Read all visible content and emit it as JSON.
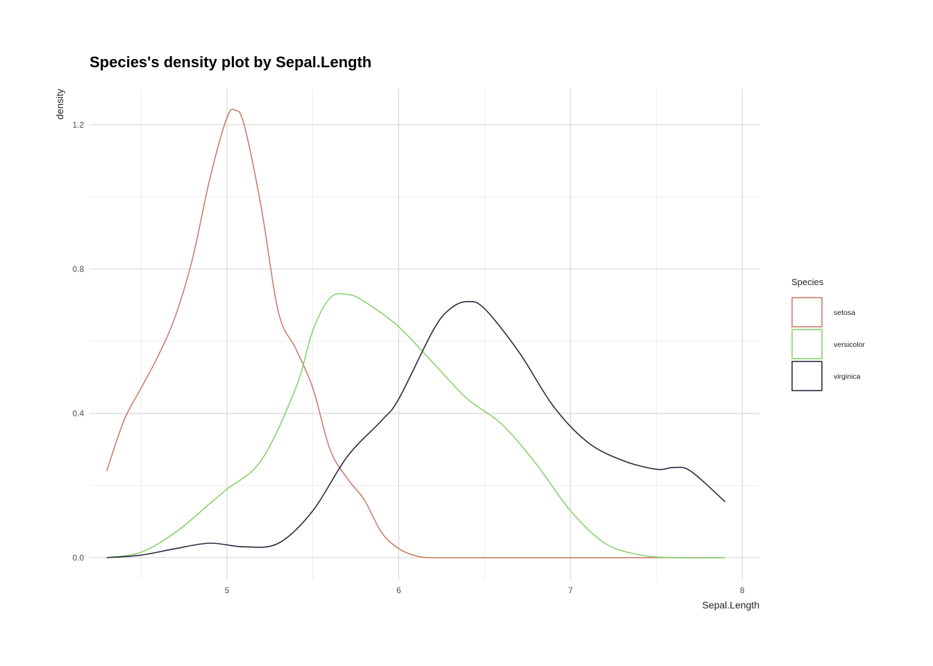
{
  "chart_data": {
    "type": "line",
    "title": "Species's density plot by Sepal.Length",
    "xlabel": "Sepal.Length",
    "ylabel": "density",
    "xlim": [
      4.2,
      8.1
    ],
    "ylim": [
      -0.06,
      1.3
    ],
    "x_ticks": [
      5,
      6,
      7,
      8
    ],
    "y_ticks": [
      0.0,
      0.4,
      0.8,
      1.2
    ],
    "y_tick_labels": [
      "0.0",
      "0.4",
      "0.8",
      "1.2"
    ],
    "grid": true,
    "legend": {
      "title": "Species",
      "position": "right"
    },
    "series": [
      {
        "name": "setosa",
        "color": "#cd7b69",
        "x": [
          4.3,
          4.4,
          4.5,
          4.6,
          4.7,
          4.8,
          4.9,
          5.0,
          5.05,
          5.1,
          5.2,
          5.3,
          5.4,
          5.5,
          5.6,
          5.7,
          5.8,
          5.9,
          6.0,
          6.1,
          6.2,
          6.5,
          7.0,
          7.5,
          7.9
        ],
        "y": [
          0.24,
          0.38,
          0.47,
          0.56,
          0.67,
          0.83,
          1.05,
          1.22,
          1.24,
          1.2,
          0.97,
          0.68,
          0.58,
          0.47,
          0.3,
          0.22,
          0.16,
          0.07,
          0.025,
          0.005,
          0.0,
          0.0,
          0.0,
          0.0,
          0.0
        ]
      },
      {
        "name": "versicolor",
        "color": "#86d26c",
        "x": [
          4.3,
          4.5,
          4.7,
          4.9,
          5.0,
          5.2,
          5.4,
          5.5,
          5.6,
          5.7,
          5.8,
          6.0,
          6.2,
          6.4,
          6.6,
          6.8,
          7.0,
          7.2,
          7.4,
          7.6,
          7.9
        ],
        "y": [
          0.0,
          0.015,
          0.07,
          0.15,
          0.19,
          0.27,
          0.47,
          0.63,
          0.72,
          0.73,
          0.71,
          0.64,
          0.54,
          0.44,
          0.37,
          0.26,
          0.13,
          0.04,
          0.008,
          0.0,
          0.0
        ]
      },
      {
        "name": "virginica",
        "color": "#2c2440",
        "x": [
          4.3,
          4.5,
          4.7,
          4.9,
          5.1,
          5.3,
          5.5,
          5.7,
          5.9,
          6.0,
          6.2,
          6.3,
          6.4,
          6.5,
          6.7,
          6.9,
          7.1,
          7.3,
          7.5,
          7.6,
          7.7,
          7.9
        ],
        "y": [
          0.0,
          0.007,
          0.025,
          0.04,
          0.03,
          0.04,
          0.13,
          0.28,
          0.38,
          0.44,
          0.63,
          0.69,
          0.71,
          0.69,
          0.57,
          0.42,
          0.32,
          0.27,
          0.245,
          0.25,
          0.24,
          0.155
        ]
      }
    ]
  }
}
